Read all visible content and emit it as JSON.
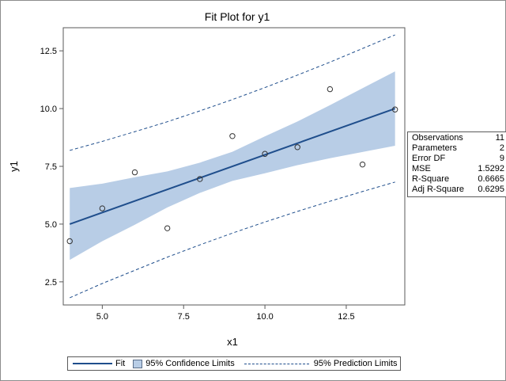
{
  "chart_data": {
    "type": "scatter",
    "title": "Fit Plot for y1",
    "xlabel": "x1",
    "ylabel": "y1",
    "xlim": [
      3.8,
      14.3
    ],
    "ylim": [
      1.5,
      13.5
    ],
    "xticks": [
      "5.0",
      "7.5",
      "10.0",
      "12.5"
    ],
    "xtick_values": [
      5,
      7.5,
      10,
      12.5
    ],
    "yticks": [
      "2.5",
      "5.0",
      "7.5",
      "10.0",
      "12.5"
    ],
    "ytick_values": [
      2.5,
      5,
      7.5,
      10,
      12.5
    ],
    "points": {
      "x": [
        4,
        5,
        6,
        7,
        8,
        9,
        10,
        11,
        12,
        13,
        14
      ],
      "y": [
        4.26,
        5.68,
        7.24,
        4.82,
        6.95,
        8.81,
        8.04,
        8.33,
        10.84,
        7.58,
        9.96
      ]
    },
    "fit": {
      "intercept": 3.0001,
      "slope": 0.5001
    },
    "confidence_band": {
      "x": [
        4,
        5,
        6,
        7,
        8,
        9,
        10,
        11,
        12,
        13,
        14
      ],
      "lower": [
        3.45,
        4.26,
        4.97,
        5.72,
        6.35,
        6.87,
        7.2,
        7.55,
        7.85,
        8.12,
        8.39
      ],
      "upper": [
        6.56,
        6.75,
        7.03,
        7.28,
        7.66,
        8.13,
        8.8,
        9.44,
        10.15,
        10.88,
        11.61
      ]
    },
    "prediction_limits": {
      "x": [
        4,
        5,
        6,
        7,
        8,
        9,
        10,
        11,
        12,
        13,
        14
      ],
      "lower": [
        1.81,
        2.43,
        3.0,
        3.57,
        4.1,
        4.61,
        5.09,
        5.55,
        5.99,
        6.41,
        6.82
      ],
      "upper": [
        8.19,
        8.58,
        9.0,
        9.43,
        9.9,
        10.39,
        10.91,
        11.45,
        12.01,
        12.6,
        13.19
      ]
    },
    "grid": false,
    "legend": "bottom",
    "colors": {
      "fit": "#1f4e8c",
      "band": "#b8cde6",
      "points": "#333333"
    }
  },
  "stats": [
    {
      "label": "Observations",
      "value": "11"
    },
    {
      "label": "Parameters",
      "value": "2"
    },
    {
      "label": "Error DF",
      "value": "9"
    },
    {
      "label": "MSE",
      "value": "1.5292"
    },
    {
      "label": "R-Square",
      "value": "0.6665"
    },
    {
      "label": "Adj R-Square",
      "value": "0.6295"
    }
  ],
  "legend": {
    "fit": "Fit",
    "confidence": "95% Confidence Limits",
    "prediction": "95% Prediction Limits"
  }
}
